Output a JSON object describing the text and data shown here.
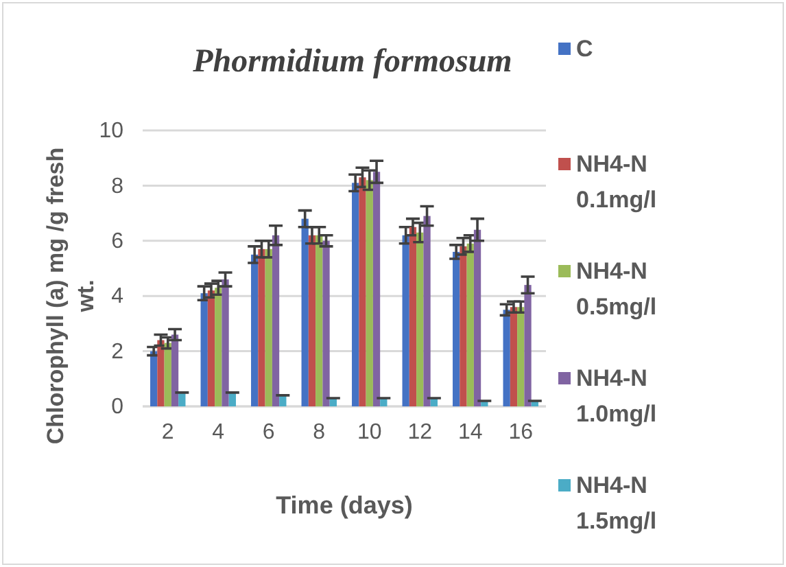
{
  "chart_data": {
    "type": "bar",
    "title": "Phormidium formosum",
    "xlabel": "Time (days)",
    "ylabel": "Chlorophyll (a)  mg /g fresh wt.",
    "categories": [
      "2",
      "4",
      "6",
      "8",
      "10",
      "12",
      "14",
      "16"
    ],
    "series": [
      {
        "name": "C",
        "color": "#4472c4",
        "values": [
          2.0,
          4.1,
          5.5,
          6.8,
          8.1,
          6.2,
          5.6,
          3.5
        ],
        "errors": [
          0.15,
          0.25,
          0.3,
          0.3,
          0.3,
          0.3,
          0.25,
          0.2
        ]
      },
      {
        "name": "NH4-N 0.1mg/l",
        "color": "#c0504d",
        "values": [
          2.4,
          4.2,
          5.7,
          6.2,
          8.3,
          6.5,
          5.8,
          3.6
        ],
        "errors": [
          0.2,
          0.25,
          0.3,
          0.3,
          0.35,
          0.3,
          0.3,
          0.2
        ]
      },
      {
        "name": "NH4-N 0.5mg/l",
        "color": "#9bbb59",
        "values": [
          2.3,
          4.3,
          5.7,
          6.2,
          8.2,
          6.3,
          5.9,
          3.6
        ],
        "errors": [
          0.2,
          0.25,
          0.3,
          0.3,
          0.35,
          0.35,
          0.3,
          0.2
        ]
      },
      {
        "name": "NH4-N 1.0mg/l",
        "color": "#8064a2",
        "values": [
          2.6,
          4.6,
          6.2,
          6.0,
          8.5,
          6.9,
          6.4,
          4.4
        ],
        "errors": [
          0.2,
          0.25,
          0.35,
          0.2,
          0.4,
          0.35,
          0.4,
          0.3
        ]
      },
      {
        "name": "NH4-N 1.5mg/l",
        "color": "#4bacc6",
        "values": [
          0.5,
          0.5,
          0.4,
          0.3,
          0.3,
          0.3,
          0.2,
          0.2
        ],
        "errors": [
          0,
          0,
          0,
          0,
          0,
          0,
          0,
          0
        ]
      }
    ],
    "ylim": [
      0,
      10
    ],
    "yticks": [
      0,
      2,
      4,
      6,
      8,
      10
    ],
    "grid": "y",
    "legend": "right"
  }
}
